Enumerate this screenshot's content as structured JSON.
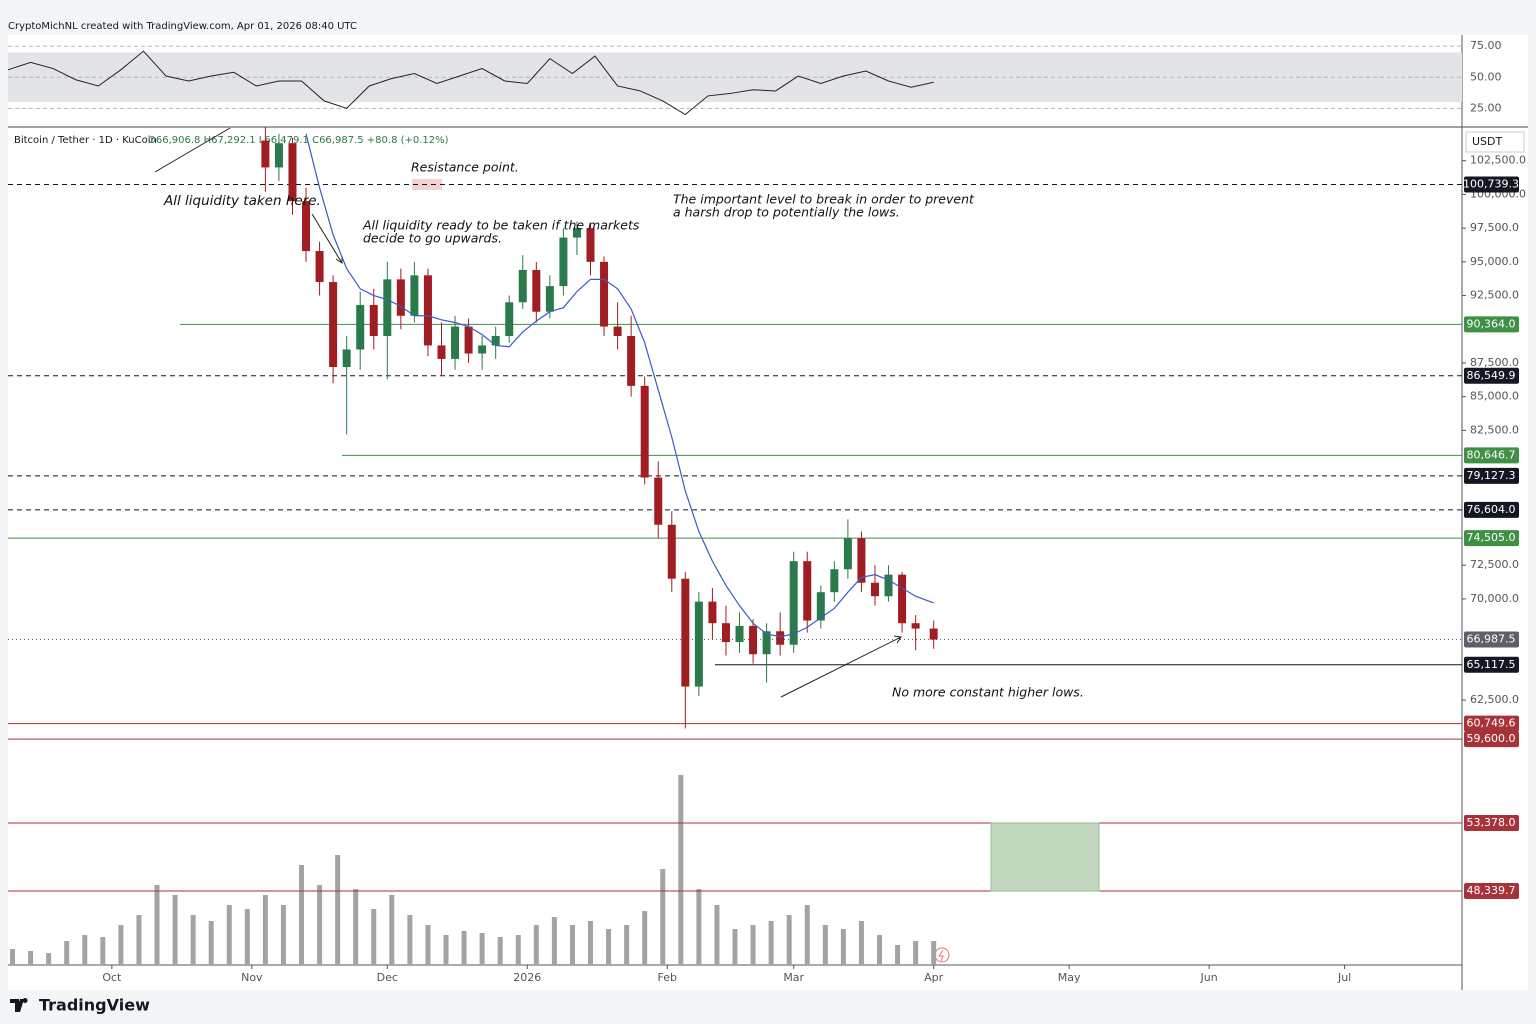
{
  "header": {
    "credit": "CryptoMichNL created with TradingView.com, Apr 01, 2026 08:40 UTC",
    "brand": "TradingView"
  },
  "chart_data": {
    "type": "candlestick",
    "symbol": "Bitcoin / Tether · 1D · KuCoin",
    "ohlc_text": "O66,906.8 H67,292.1 L66,479.1 C66,987.5 +80.8 (+0.12%)",
    "currency": "USDT",
    "xlim": [
      -23,
      299
    ],
    "xticks": [
      {
        "value": 0,
        "label": "Oct"
      },
      {
        "value": 31,
        "label": "Nov"
      },
      {
        "value": 61,
        "label": "Dec"
      },
      {
        "value": 92,
        "label": "2026"
      },
      {
        "value": 123,
        "label": "Feb"
      },
      {
        "value": 151,
        "label": "Mar"
      },
      {
        "value": 182,
        "label": "Apr"
      },
      {
        "value": 212,
        "label": "May"
      },
      {
        "value": 243,
        "label": "Jun"
      },
      {
        "value": 273,
        "label": "Jul"
      }
    ],
    "ylim": [
      42850,
      105000
    ],
    "yticks": [
      {
        "value": 102500,
        "label": "102,500.0"
      },
      {
        "value": 100000,
        "label": "100,000.0"
      },
      {
        "value": 97500,
        "label": "97,500.0"
      },
      {
        "value": 95000,
        "label": "95,000.0"
      },
      {
        "value": 92500,
        "label": "92,500.0"
      },
      {
        "value": 87500,
        "label": "87,500.0"
      },
      {
        "value": 85000,
        "label": "85,000.0"
      },
      {
        "value": 82500,
        "label": "82,500.0"
      },
      {
        "value": 72500,
        "label": "72,500.0"
      },
      {
        "value": 70000,
        "label": "70,000.0"
      },
      {
        "value": 62500,
        "label": "62,500.0"
      }
    ],
    "candles": {
      "x": [
        34,
        37,
        40,
        43,
        46,
        49,
        52,
        55,
        58,
        61,
        64,
        67,
        70,
        73,
        76,
        79,
        82,
        85,
        88,
        91,
        94,
        97,
        100,
        103,
        106,
        109,
        112,
        115,
        118,
        121,
        124,
        127,
        130,
        133,
        136,
        139,
        142,
        145,
        148,
        151,
        154,
        157,
        160,
        163,
        166,
        169,
        172,
        175,
        178,
        182
      ],
      "open": [
        104000,
        102000,
        103800,
        99500,
        95800,
        93500,
        87200,
        88500,
        91800,
        89500,
        93700,
        91000,
        94000,
        88800,
        87800,
        90200,
        88200,
        88800,
        89500,
        92000,
        94400,
        91300,
        93200,
        96800,
        97500,
        95000,
        90200,
        89500,
        85800,
        79000,
        75500,
        71500,
        63500,
        69800,
        68200,
        66800,
        68000,
        65900,
        67600,
        66600,
        72800,
        68400,
        70500,
        72200,
        74500,
        71200,
        70200,
        71800,
        68200,
        67800
      ],
      "high": [
        105000,
        104500,
        104200,
        100500,
        96500,
        94000,
        89500,
        92800,
        93000,
        95000,
        94500,
        95000,
        94500,
        90500,
        91000,
        90800,
        89500,
        90200,
        92500,
        95500,
        95000,
        94000,
        97500,
        98000,
        97800,
        95400,
        92000,
        91000,
        86500,
        80200,
        76500,
        72000,
        70500,
        70800,
        69500,
        69000,
        68500,
        68200,
        69000,
        73500,
        73500,
        71000,
        72800,
        75900,
        75000,
        72500,
        72500,
        72000,
        68800,
        68400
      ],
      "low": [
        100200,
        101000,
        98500,
        95000,
        92500,
        86000,
        82200,
        87000,
        88500,
        86300,
        90000,
        90500,
        88000,
        86600,
        87000,
        87500,
        87000,
        87800,
        89000,
        91500,
        90500,
        90800,
        92500,
        95500,
        94000,
        89500,
        88500,
        85000,
        78500,
        74500,
        70500,
        60400,
        62800,
        67000,
        65800,
        66000,
        65200,
        63800,
        65800,
        66000,
        67500,
        67800,
        69800,
        71500,
        70500,
        69500,
        69800,
        67500,
        66200,
        66300
      ],
      "close": [
        102000,
        103800,
        99500,
        95800,
        93500,
        87200,
        88500,
        91800,
        89500,
        93700,
        91000,
        94000,
        88800,
        87800,
        90200,
        88200,
        88800,
        89500,
        92000,
        94400,
        91300,
        93200,
        96800,
        97500,
        95000,
        90200,
        89500,
        85800,
        79000,
        75500,
        71500,
        63500,
        69800,
        68200,
        66800,
        68000,
        65900,
        67600,
        66600,
        72800,
        68400,
        70500,
        72200,
        74500,
        71200,
        70200,
        71800,
        68200,
        67800,
        66987.5
      ],
      "up_color": "#2b7a4b",
      "down_color": "#a11d24"
    },
    "moving_average": {
      "color": "#3b5cc4",
      "values": [
        null,
        null,
        null,
        104500,
        100500,
        97000,
        94500,
        93000,
        92500,
        92200,
        91700,
        91000,
        91000,
        90700,
        90500,
        90200,
        89600,
        88800,
        88700,
        89800,
        90600,
        91300,
        91600,
        92800,
        93700,
        93700,
        93000,
        91500,
        89000,
        85500,
        82000,
        78000,
        75000,
        72800,
        71000,
        69500,
        68200,
        67400,
        67200,
        67400,
        67900,
        68600,
        69300,
        70500,
        71600,
        71800,
        71400,
        70800,
        70200,
        69700
      ]
    },
    "volume": {
      "color": "#a3a3a3",
      "ylim": [
        0,
        100
      ],
      "x": [
        -22,
        -18,
        -14,
        -10,
        -6,
        -2,
        2,
        6,
        10,
        14,
        18,
        22,
        26,
        30,
        34,
        38,
        42,
        46,
        50,
        54,
        58,
        62,
        66,
        70,
        74,
        78,
        82,
        86,
        90,
        94,
        98,
        102,
        106,
        110,
        114,
        118,
        122,
        126,
        130,
        134,
        138,
        142,
        146,
        150,
        154,
        158,
        162,
        166,
        170,
        174,
        178,
        182
      ],
      "values": [
        8,
        7,
        6,
        12,
        15,
        14,
        20,
        25,
        40,
        35,
        25,
        22,
        30,
        28,
        35,
        30,
        50,
        40,
        55,
        38,
        28,
        35,
        25,
        20,
        15,
        17,
        16,
        14,
        15,
        20,
        24,
        20,
        22,
        18,
        20,
        27,
        48,
        95,
        38,
        30,
        18,
        20,
        22,
        25,
        30,
        20,
        18,
        22,
        15,
        10,
        12,
        12
      ]
    },
    "rsi": {
      "color": "#222222",
      "ylim": [
        10,
        84
      ],
      "yticks": [
        {
          "value": 75,
          "label": "75.00"
        },
        {
          "value": 50,
          "label": "50.00"
        },
        {
          "value": 25,
          "label": "25.00"
        }
      ],
      "band": [
        30,
        70
      ],
      "x": [
        -23,
        -18,
        -13,
        -8,
        -3,
        2,
        7,
        12,
        17,
        22,
        27,
        32,
        37,
        42,
        47,
        52,
        57,
        62,
        67,
        72,
        77,
        82,
        87,
        92,
        97,
        102,
        107,
        112,
        117,
        122,
        127,
        132,
        137,
        142,
        147,
        152,
        157,
        162,
        167,
        172,
        177,
        182
      ],
      "values": [
        56,
        62,
        57,
        48,
        43,
        56,
        71,
        51,
        47,
        51,
        54,
        43,
        47,
        47,
        31,
        25,
        43,
        49,
        53,
        45,
        51,
        57,
        47,
        45,
        65,
        53,
        67,
        43,
        39,
        31,
        20,
        35,
        37,
        40,
        39,
        51,
        45,
        51,
        55,
        47,
        42,
        46
      ]
    },
    "levels": [
      {
        "value": 100739.3,
        "label": "100,739.3",
        "color": "#131722",
        "style": "dashed"
      },
      {
        "value": 90364.0,
        "label": "90,364.0",
        "color": "#3f8f45",
        "style": "solid"
      },
      {
        "value": 86549.9,
        "label": "86,549.9",
        "color": "#131722",
        "style": "dashed"
      },
      {
        "value": 80646.7,
        "label": "80,646.7",
        "color": "#3f8f45",
        "style": "solid"
      },
      {
        "value": 79127.3,
        "label": "79,127.3",
        "color": "#131722",
        "style": "dashed"
      },
      {
        "value": 76604.0,
        "label": "76,604.0",
        "color": "#131722",
        "style": "dashed"
      },
      {
        "value": 74505.0,
        "label": "74,505.0",
        "color": "#3f8f45",
        "style": "solid"
      },
      {
        "value": 66987.5,
        "label": "66,987.5",
        "color": "#5d606b",
        "style": "dotted"
      },
      {
        "value": 65117.5,
        "label": "65,117.5",
        "color": "#131722",
        "style": "solid"
      },
      {
        "value": 60749.6,
        "label": "60,749.6",
        "color": "#a8323a",
        "style": "solid"
      },
      {
        "value": 59600.0,
        "label": "59,600.0",
        "color": "#a8323a",
        "style": "solid"
      },
      {
        "value": 53378.0,
        "label": "53,378.0",
        "color": "#a8323a",
        "style": "solid"
      },
      {
        "value": 48339.7,
        "label": "48,339.7",
        "color": "#a8323a",
        "style": "solid"
      }
    ],
    "annotations": [
      [
        "All liquidity taken here."
      ],
      [
        "Resistance point."
      ],
      [
        "All liquidity ready to be taken if the markets",
        "decide to go upwards."
      ],
      [
        "The important level to break in order to prevent",
        "a harsh drop to potentially the lows."
      ],
      [
        "No more constant higher lows."
      ]
    ]
  }
}
